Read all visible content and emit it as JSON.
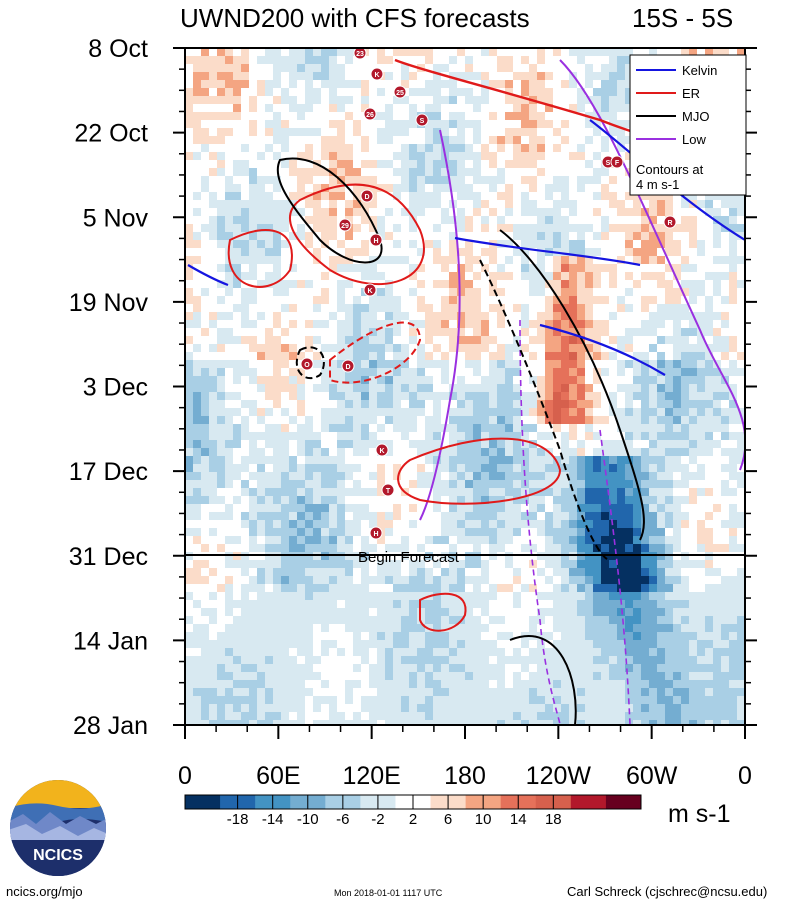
{
  "chart_data": {
    "type": "heatmap",
    "title": "UWND200 with CFS forecasts",
    "region": "15S - 5S",
    "y_tick_labels": [
      "8 Oct",
      "22 Oct",
      "5 Nov",
      "19 Nov",
      "3 Dec",
      "17 Dec",
      "31 Dec",
      "14 Jan",
      "28 Jan"
    ],
    "x_tick_labels": [
      "0",
      "60E",
      "120E",
      "180",
      "120W",
      "60W",
      "0"
    ],
    "x_range_deg": [
      0,
      360
    ],
    "forecast_label": "Begin Forecast",
    "forecast_start": "31 Dec",
    "colorbar": {
      "labels": [
        "-18",
        "-14",
        "-10",
        "-6",
        "-2",
        "2",
        "6",
        "10",
        "14",
        "18"
      ],
      "colors": [
        "#053061",
        "#2166ac",
        "#4393c3",
        "#74add1",
        "#a9cfe5",
        "#d8e9f1",
        "#ffffff",
        "#fbdcc9",
        "#f4a582",
        "#e5715a",
        "#d6604d",
        "#b2182b",
        "#67001f"
      ],
      "units": "m s-1"
    },
    "legend": {
      "entries": [
        {
          "name": "Kelvin",
          "color": "#1515e0"
        },
        {
          "name": "ER",
          "color": "#e01a1a"
        },
        {
          "name": "MJO",
          "color": "#000000"
        },
        {
          "name": "Low",
          "color": "#9a30e0"
        }
      ],
      "note_line1": "Contours at",
      "note_line2": "4 m s-1"
    },
    "storm_markers": [
      "23",
      "K",
      "25",
      "26",
      "S",
      "S",
      "F",
      "R",
      "D",
      "29",
      "H",
      "K",
      "O",
      "D",
      "K",
      "T",
      "H"
    ]
  },
  "footer": {
    "left": "ncics.org/mjo",
    "center": "Mon 2018-01-01 1117 UTC",
    "right": "Carl Schreck (cjschrec@ncsu.edu)"
  },
  "logo": {
    "text": "NCICS"
  }
}
